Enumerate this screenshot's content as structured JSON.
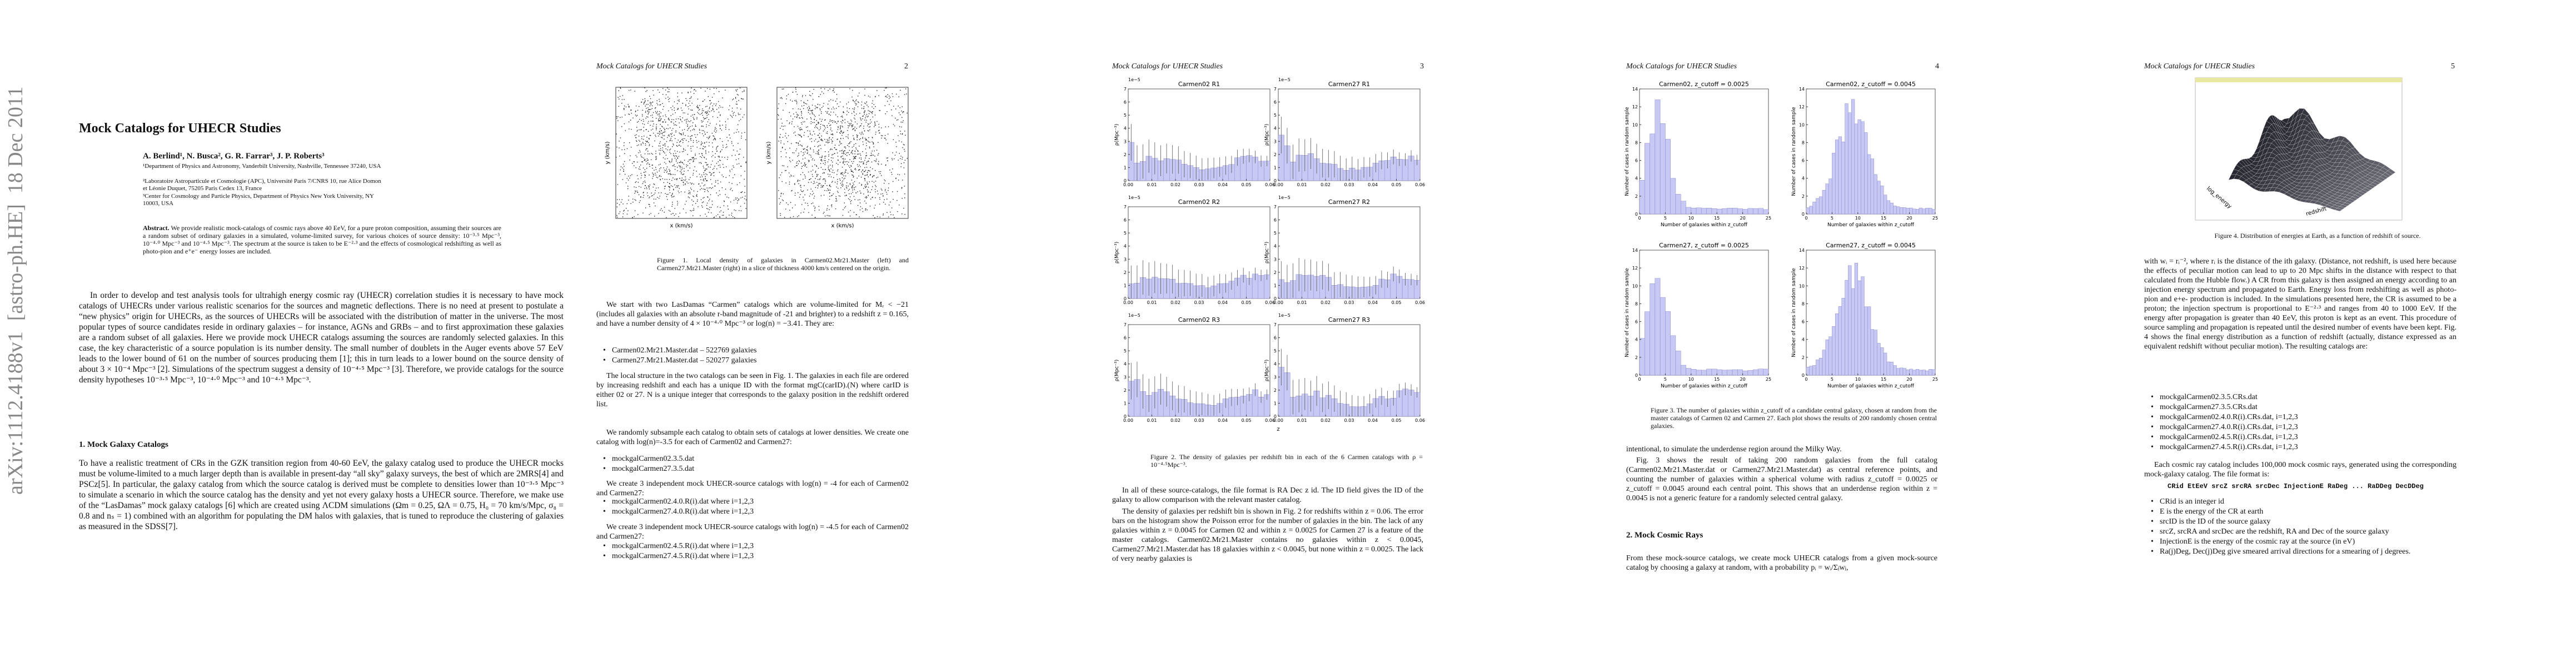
{
  "sidebar": "arXiv:1112.4188v1  [astro-ph.HE]  18 Dec 2011",
  "running_head": "Mock Catalogs for UHECR Studies",
  "page_numbers": [
    "2",
    "3",
    "4",
    "5"
  ],
  "page1": {
    "title": "Mock Catalogs for UHECR Studies",
    "authors": "A. Berlind¹, N. Busca², G. R. Farrar³, J. P. Roberts³",
    "affiliations": [
      "¹Department of Physics and Astronomy, Vanderbilt University, Nashville, Tennessee 37240, USA",
      "²Laboratoire Astroparticule et Cosmologie (APC), Université Paris 7/CNRS 10, rue Alice Domon et Léonie Duquet, 75205 Paris Cedex 13, France",
      "³Center for Cosmology and Particle Physics, Department of Physics New York University, NY 10003, USA"
    ],
    "abstract_label": "Abstract.",
    "abstract": "We provide realistic mock-catalogs of cosmic rays above 40 EeV, for a pure proton composition, assuming their sources are a random subset of ordinary galaxies in a simulated, volume-limited survey, for various choices of source density: 10⁻³·⁵ Mpc⁻³, 10⁻⁴·⁰ Mpc⁻³ and 10⁻⁴·⁵ Mpc⁻³. The spectrum at the source is taken to be E⁻²·³ and the effects of cosmological redshifting as well as photo-pion and e⁺e⁻ energy losses are included.",
    "intro": "In order to develop and test analysis tools for ultrahigh energy cosmic ray (UHECR) correlation studies it is necessary to have mock catalogs of UHECRs under various realistic scenarios for the sources and magnetic deflections. There is no need at present to postulate a “new physics” origin for UHECRs, as the sources of UHECRs will be associated with the distribution of matter in the universe. The most popular types of source candidates reside in ordinary galaxies – for instance, AGNs and GRBs – and to first approximation these galaxies are a random subset of all galaxies. Here we provide mock UHECR catalogs assuming the sources are randomly selected galaxies. In this case, the key characteristic of a source population is its number density. The small number of doublets in the Auger events above 57 EeV leads to the lower bound of 61 on the number of sources producing them [1]; this in turn leads to a lower bound on the source density of about 3 × 10⁻⁴ Mpc⁻³ [2]. Simulations of the spectrum suggest a density of 10⁻⁴·⁵ Mpc⁻³ [3]. Therefore, we provide catalogs for the source density hypotheses 10⁻³·⁵ Mpc⁻³, 10⁻⁴·⁰ Mpc⁻³ and 10⁻⁴·⁵ Mpc⁻³.",
    "section_heading": "1. Mock Galaxy Catalogs",
    "section_text": "To have a realistic treatment of CRs in the GZK transition region from 40-60 EeV, the galaxy catalog used to produce the UHECR mocks must be volume-limited to a much larger depth than is available in present-day “all sky” galaxy surveys, the best of which are 2MRS[4] and PSCz[5]. In particular, the galaxy catalog from which the source catalog is derived must be complete to densities lower than 10⁻³·⁵ Mpc⁻³ to simulate a scenario in which the source catalog has the density and yet not every galaxy hosts a UHECR source. Therefore, we make use of the “LasDamas” mock galaxy catalogs [6] which are created using ΛCDM simulations (Ωm = 0.25, ΩΛ = 0.75, H₀ = 70 km/s/Mpc, σ₈ = 0.8 and nₛ = 1) combined with an algorithm for populating the DM halos with galaxies, that is tuned to reproduce the clustering of galaxies as measured in the SDSS[7]."
  },
  "page2": {
    "figure_axis_y": "y (km/s)",
    "figure_axis_x": "x (km/s)",
    "caption": "Figure 1.  Local density of galaxies in Carmen02.Mr21.Master (left) and Carmen27.Mr21.Master (right) in a slice of thickness 4000 km/s centered on the origin.",
    "para1": "We start with two LasDamas “Carmen” catalogs which are volume-limited for Mᵣ < −21 (includes all galaxies with an absolute r-band magnitude of -21 and brighter) to a redshift z = 0.165, and have a number density of 4 × 10⁻⁴·⁰ Mpc⁻³ or log(n) = −3.41. They are:",
    "bullets1": [
      "Carmen02.Mr21.Master.dat – 522769 galaxies",
      "Carmen27.Mr21.Master.dat – 520277 galaxies"
    ],
    "para2": "The local structure in the two catalogs can be seen in Fig. 1. The galaxies in each file are ordered by increasing redshift and each has a unique ID with the format mgC(carID).(N) where carID is either 02 or 27. N is a unique integer that corresponds to the galaxy position in the redshift ordered list.",
    "para3": "We randomly subsample each catalog to obtain sets of catalogs at lower densities. We create one catalog with log(n)=-3.5 for each of Carmen02 and Carmen27:",
    "bullets2": [
      "mockgalCarmen02.3.5.dat",
      "mockgalCarmen27.3.5.dat"
    ],
    "para4": "We create 3 independent mock UHECR-source catalogs with log(n) = -4 for each of Carmen02 and Carmen27:",
    "bullets3": [
      "mockgalCarmen02.4.0.R(i).dat where i=1,2,3",
      "mockgalCarmen27.4.0.R(i).dat where i=1,2,3"
    ],
    "para5": "We create 3 independent mock UHECR-source catalogs with log(n) = -4.5 for each of Carmen02 and Carmen27:",
    "bullets4": [
      "mockgalCarmen02.4.5.R(i).dat where i=1,2,3",
      "mockgalCarmen27.4.5.R(i).dat where i=1,2,3"
    ]
  },
  "page3": {
    "panels": [
      "Carmen02 R1",
      "Carmen27 R1",
      "Carmen02 R2",
      "Carmen27 R2",
      "Carmen02 R3",
      "Carmen27 R3"
    ],
    "scale": "1e−5",
    "ylabel": "ρ(Mpc⁻³)",
    "xlabel": "z",
    "xticks": [
      "0.00",
      "0.01",
      "0.02",
      "0.03",
      "0.04",
      "0.05",
      "0.06"
    ],
    "yticks": [
      "0",
      "1",
      "2",
      "3",
      "4",
      "5",
      "6",
      "7"
    ],
    "caption": "Figure 2.  The density of galaxies per redshift bin in each of the 6 Carmen catalogs with ρ = 10⁻⁴·⁵Mpc⁻³.",
    "para1": "In all of these source-catalogs, the file format is RA Dec z id. The ID field gives the ID of the galaxy to allow comparison with the relevant master catalog.",
    "para2": "The density of galaxies per redshift bin is shown in Fig. 2 for redshifts within z = 0.06. The error bars on the histogram show the Poisson error for the number of galaxies in the bin. The lack of any galaxies within z = 0.0045 for Carmen 02 and within z = 0.0025 for Carmen 27 is a feature of the master catalogs. Carmen02.Mr21.Master contains no galaxies within z < 0.0045, Carmen27.Mr21.Master.dat has 18 galaxies within z < 0.0045, but none within z = 0.0025. The lack of very nearby galaxies is"
  },
  "page4": {
    "panels": [
      "Carmen02, z_cutoff = 0.0025",
      "Carmen02, z_cutoff = 0.0045",
      "Carmen27, z_cutoff = 0.0025",
      "Carmen27, z_cutoff = 0.0045"
    ],
    "xlabel": "Number of galaxies within z_cutoff",
    "ylabel": "Number of cases in random sample",
    "xticks": [
      "0",
      "5",
      "10",
      "15",
      "20",
      "25"
    ],
    "yticks": [
      "0",
      "2",
      "4",
      "6",
      "8",
      "10",
      "12",
      "14"
    ],
    "caption": "Figure 3.  The number of galaxies within z_cutoff of a candidate central galaxy, chosen at random from the master catalogs of Carmen 02 and Carmen 27. Each plot shows the results of 200 randomly chosen central galaxies.",
    "para1": "intentional, to simulate the underdense region around the Milky Way.",
    "para2": "Fig. 3 shows the result of taking 200 random galaxies from the full catalog (Carmen02.Mr21.Master.dat or Carmen27.Mr21.Master.dat) as central reference points, and counting the number of galaxies within a spherical volume with radius z_cutoff = 0.0025 or z_cutoff = 0.0045 around each central point. This shows that an underdense region within z = 0.0045 is not a generic feature for a randomly selected central galaxy.",
    "section_heading": "2. Mock Cosmic Rays",
    "para3": "From these mock-source catalogs, we create mock UHECR catalogs from a given mock-source catalog by choosing a galaxy at random, with a probability pᵢ = wᵢ/Σⱼwⱼ,"
  },
  "page5": {
    "figure_xlabel": "redshift",
    "figure_ylabel": "log_energy",
    "caption": "Figure 4.  Distribution of energies at Earth, as a function of redshift of source.",
    "para1": "with wᵢ = rᵢ⁻², where rᵢ is the distance of the ith galaxy. (Distance, not redshift, is used here because the effects of peculiar motion can lead to up to 20 Mpc shifts in the distance with respect to that calculated from the Hubble flow.) A CR from this galaxy is then assigned an energy according to an injection energy spectrum and propagated to Earth. Energy loss from redshifting as well as photo-pion and e+e- production is included. In the simulations presented here, the CR is assumed to be a proton; the injection spectrum is proportional to E⁻²·³ and ranges from 40 to 1000 EeV. If the energy after propagation is greater than 40 EeV, this proton is kept as an event. This procedure of source sampling and propagation is repeated until the desired number of events have been kept. Fig. 4 shows the final energy distribution as a function of redshift (actually, distance expressed as an equivalent redshift without peculiar motion). The resulting catalogs are:",
    "bullets1": [
      "mockgalCarmen02.3.5.CRs.dat",
      "mockgalCarmen27.3.5.CRs.dat",
      "mockgalCarmen02.4.0.R(i).CRs.dat, i=1,2,3",
      "mockgalCarmen27.4.0.R(i).CRs.dat, i=1,2,3",
      "mockgalCarmen02.4.5.R(i).CRs.dat, i=1,2,3",
      "mockgalCarmen27.4.5.R(i).CRs.dat, i=1,2,3"
    ],
    "para2": "Each cosmic ray catalog includes 100,000 mock cosmic rays, generated using the corresponding mock-galaxy catalog. The file format is:",
    "format": "CRid EtEeV srcZ srcRA srcDec InjectionE RaDeg ... RaDDeg DecDDeg",
    "bullets2": [
      "CRid is an integer id",
      "E is the energy of the CR at earth",
      "srcID is the ID of the source galaxy",
      "srcZ, srcRA and srcDec are the redshift, RA and Dec of the source galaxy",
      "InjectionE is the energy of the cosmic ray at the source (in eV)",
      "Ra(j)Deg, Dec(j)Deg give smeared arrival directions for a smearing of j degrees."
    ]
  }
}
